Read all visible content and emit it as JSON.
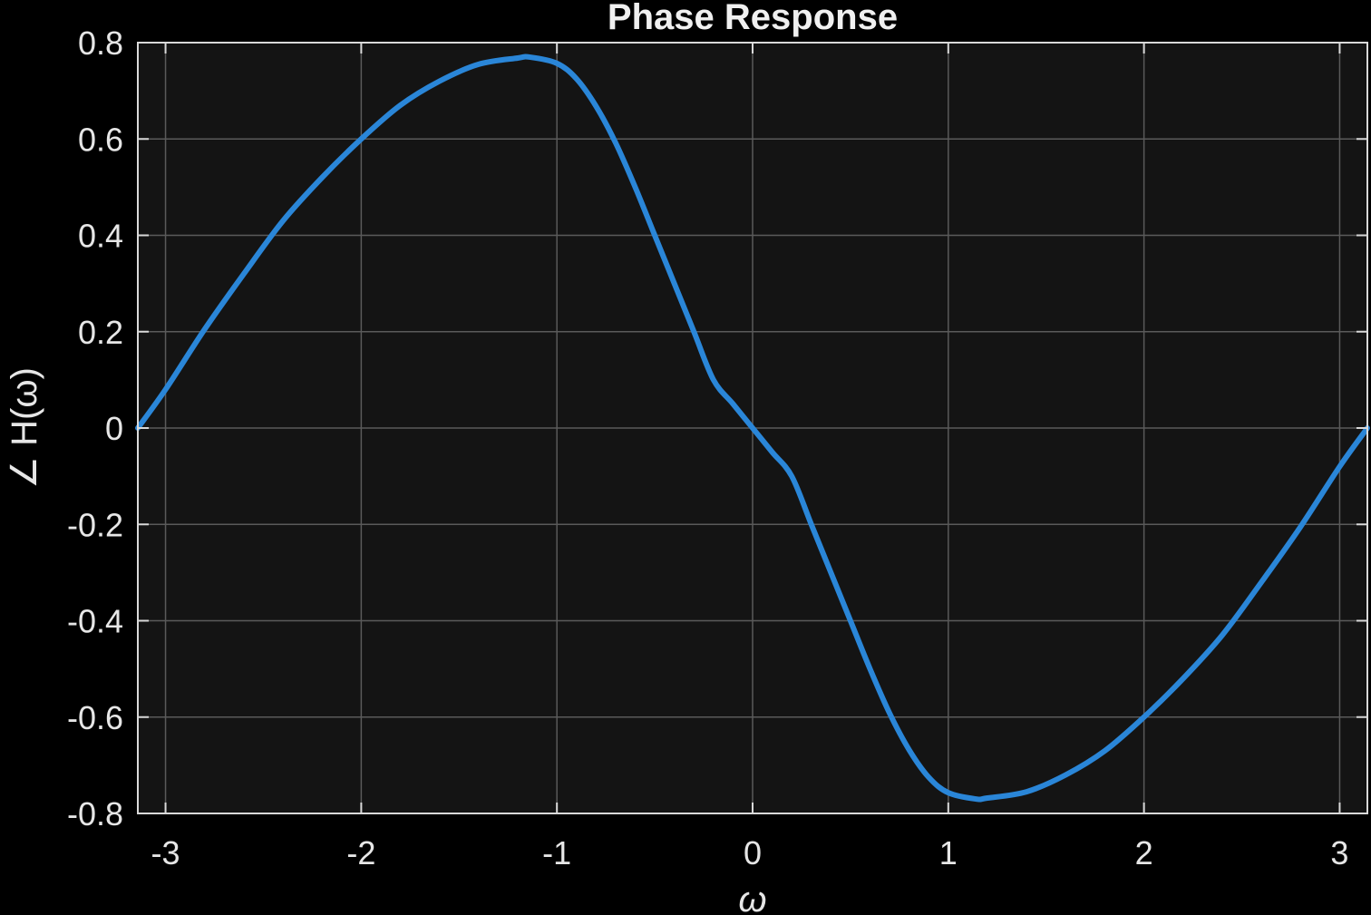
{
  "chart_data": {
    "type": "line",
    "title": "Phase Response",
    "xlabel": "ω",
    "ylabel": "∠ H(ω)",
    "xlim": [
      -3.14159,
      3.14159
    ],
    "ylim": [
      -0.8,
      0.8
    ],
    "xticks": [
      -3,
      -2,
      -1,
      0,
      1,
      2,
      3
    ],
    "xtick_labels": [
      "-3",
      "-2",
      "-1",
      "0",
      "1",
      "2",
      "3"
    ],
    "yticks": [
      0.8,
      0.6,
      0.4,
      0.2,
      0,
      -0.2,
      -0.4,
      -0.6,
      -0.8
    ],
    "ytick_labels": [
      "0.8",
      "0.6",
      "0.4",
      "0.2",
      "0",
      "-0.2",
      "-0.4",
      "-0.6",
      "-0.8"
    ],
    "grid": true,
    "series": [
      {
        "x": [
          -3.1416,
          -3.0,
          -2.8,
          -2.6,
          -2.4,
          -2.2,
          -2.0,
          -1.8,
          -1.6,
          -1.4,
          -1.2,
          -1.14,
          -1.0,
          -0.9,
          -0.8,
          -0.7,
          -0.6,
          -0.5,
          -0.4,
          -0.3,
          -0.2,
          -0.1,
          0.0,
          0.1,
          0.2,
          0.3,
          0.4,
          0.5,
          0.6,
          0.7,
          0.8,
          0.9,
          1.0,
          1.14,
          1.2,
          1.4,
          1.6,
          1.8,
          2.0,
          2.2,
          2.4,
          2.6,
          2.8,
          3.0,
          3.1416
        ],
        "y": [
          0.0,
          0.08,
          0.205,
          0.32,
          0.43,
          0.52,
          0.6,
          0.67,
          0.72,
          0.755,
          0.768,
          0.77,
          0.757,
          0.725,
          0.668,
          0.592,
          0.5,
          0.4,
          0.3,
          0.2,
          0.1,
          0.05,
          0.0,
          -0.05,
          -0.1,
          -0.2,
          -0.3,
          -0.4,
          -0.5,
          -0.592,
          -0.668,
          -0.725,
          -0.757,
          -0.77,
          -0.768,
          -0.755,
          -0.72,
          -0.67,
          -0.6,
          -0.52,
          -0.43,
          -0.32,
          -0.205,
          -0.08,
          0.0
        ],
        "color": "#2a86d8"
      }
    ],
    "colors": {
      "background": "#000000",
      "plot_area": "#141414",
      "grid": "#5a5a5a",
      "axes": "#d9d9d9",
      "line": "#2a86d8"
    }
  }
}
